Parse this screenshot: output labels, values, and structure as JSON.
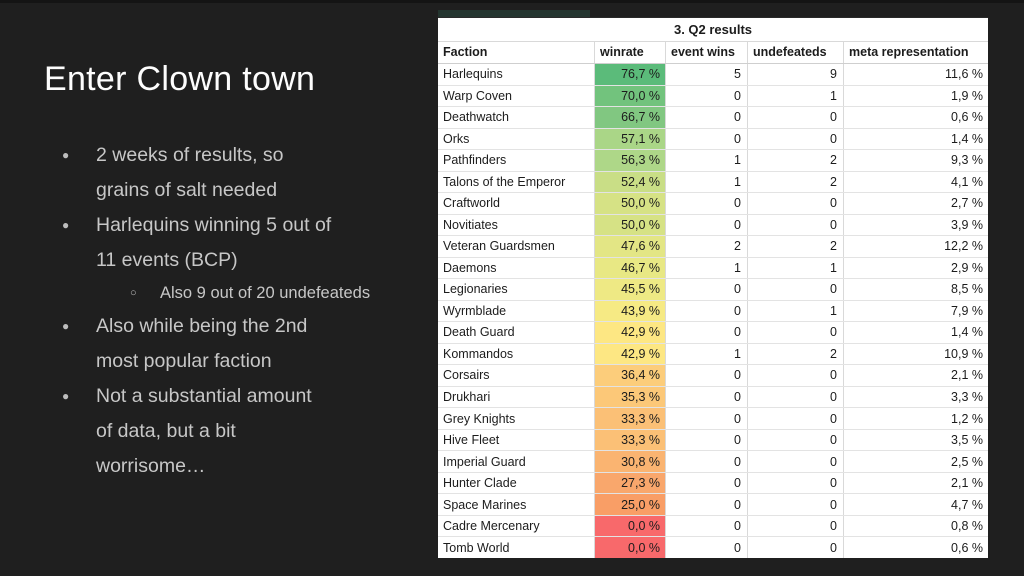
{
  "slide": {
    "title": "Enter Clown town",
    "bullets": [
      {
        "level": 1,
        "lines": [
          "2 weeks of results, so",
          "grains of salt needed"
        ]
      },
      {
        "level": 1,
        "lines": [
          "Harlequins winning 5 out of",
          "11 events (BCP)"
        ]
      },
      {
        "level": 2,
        "lines": [
          "Also 9 out of 20 undefeateds"
        ]
      },
      {
        "level": 1,
        "lines": [
          "Also while being the 2nd",
          "most popular faction"
        ]
      },
      {
        "level": 1,
        "lines": [
          "Not a substantial amount",
          "of data, but a bit",
          "worrisome…"
        ]
      }
    ],
    "colors": {
      "background": "#1f1f1f",
      "title_text": "#fdfdfd",
      "bullet_text": "#c7c7c7"
    }
  },
  "table": {
    "title": "3. Q2 results",
    "columns": [
      "Faction",
      "winrate",
      "event wins",
      "undefeateds",
      "meta representation"
    ],
    "winrate_scale": {
      "high": "#5bbb7a",
      "mid": "#f6ea84",
      "low": "#f8696b"
    },
    "rows": [
      {
        "faction": "Harlequins",
        "winrate": "76,7 %",
        "event_wins": "5",
        "undefeateds": "9",
        "meta": "11,6 %",
        "winrate_color": "#5bbb7a"
      },
      {
        "faction": "Warp Coven",
        "winrate": "70,0 %",
        "event_wins": "0",
        "undefeateds": "1",
        "meta": "1,9 %",
        "winrate_color": "#72c37d"
      },
      {
        "faction": "Deathwatch",
        "winrate": "66,7 %",
        "event_wins": "0",
        "undefeateds": "0",
        "meta": "0,6 %",
        "winrate_color": "#81c781"
      },
      {
        "faction": "Orks",
        "winrate": "57,1 %",
        "event_wins": "0",
        "undefeateds": "0",
        "meta": "1,4 %",
        "winrate_color": "#aad687"
      },
      {
        "faction": "Pathfinders",
        "winrate": "56,3 %",
        "event_wins": "1",
        "undefeateds": "2",
        "meta": "9,3 %",
        "winrate_color": "#aed788"
      },
      {
        "faction": "Talons of the Emperor",
        "winrate": "52,4 %",
        "event_wins": "1",
        "undefeateds": "2",
        "meta": "4,1 %",
        "winrate_color": "#c9de86"
      },
      {
        "faction": "Craftworld",
        "winrate": "50,0 %",
        "event_wins": "0",
        "undefeateds": "0",
        "meta": "2,7 %",
        "winrate_color": "#d6e285"
      },
      {
        "faction": "Novitiates",
        "winrate": "50,0 %",
        "event_wins": "0",
        "undefeateds": "0",
        "meta": "3,9 %",
        "winrate_color": "#d6e285"
      },
      {
        "faction": "Veteran Guardsmen",
        "winrate": "47,6 %",
        "event_wins": "2",
        "undefeateds": "2",
        "meta": "12,2 %",
        "winrate_color": "#e3e685"
      },
      {
        "faction": "Daemons",
        "winrate": "46,7 %",
        "event_wins": "1",
        "undefeateds": "1",
        "meta": "2,9 %",
        "winrate_color": "#e8e884"
      },
      {
        "faction": "Legionaries",
        "winrate": "45,5 %",
        "event_wins": "0",
        "undefeateds": "0",
        "meta": "8,5 %",
        "winrate_color": "#eee984"
      },
      {
        "faction": "Wyrmblade",
        "winrate": "43,9 %",
        "event_wins": "0",
        "undefeateds": "1",
        "meta": "7,9 %",
        "winrate_color": "#f6ea84"
      },
      {
        "faction": "Death Guard",
        "winrate": "42,9 %",
        "event_wins": "0",
        "undefeateds": "0",
        "meta": "1,4 %",
        "winrate_color": "#fde783"
      },
      {
        "faction": "Kommandos",
        "winrate": "42,9 %",
        "event_wins": "1",
        "undefeateds": "2",
        "meta": "10,9 %",
        "winrate_color": "#fde783"
      },
      {
        "faction": "Corsairs",
        "winrate": "36,4 %",
        "event_wins": "0",
        "undefeateds": "0",
        "meta": "2,1 %",
        "winrate_color": "#fccd7b"
      },
      {
        "faction": "Drukhari",
        "winrate": "35,3 %",
        "event_wins": "0",
        "undefeateds": "0",
        "meta": "3,3 %",
        "winrate_color": "#fcc878"
      },
      {
        "faction": "Grey Knights",
        "winrate": "33,3 %",
        "event_wins": "0",
        "undefeateds": "0",
        "meta": "1,2 %",
        "winrate_color": "#fbc076"
      },
      {
        "faction": "Hive Fleet",
        "winrate": "33,3 %",
        "event_wins": "0",
        "undefeateds": "0",
        "meta": "3,5 %",
        "winrate_color": "#fbc076"
      },
      {
        "faction": "Imperial Guard",
        "winrate": "30,8 %",
        "event_wins": "0",
        "undefeateds": "0",
        "meta": "2,5 %",
        "winrate_color": "#fab471"
      },
      {
        "faction": "Hunter Clade",
        "winrate": "27,3 %",
        "event_wins": "0",
        "undefeateds": "0",
        "meta": "2,1 %",
        "winrate_color": "#f9a76c"
      },
      {
        "faction": "Space Marines",
        "winrate": "25,0 %",
        "event_wins": "0",
        "undefeateds": "0",
        "meta": "4,7 %",
        "winrate_color": "#f99e66"
      },
      {
        "faction": "Cadre Mercenary",
        "winrate": "0,0 %",
        "event_wins": "0",
        "undefeateds": "0",
        "meta": "0,8 %",
        "winrate_color": "#f8696b"
      },
      {
        "faction": "Tomb World",
        "winrate": "0,0 %",
        "event_wins": "0",
        "undefeateds": "0",
        "meta": "0,6 %",
        "winrate_color": "#f8696b"
      }
    ]
  }
}
